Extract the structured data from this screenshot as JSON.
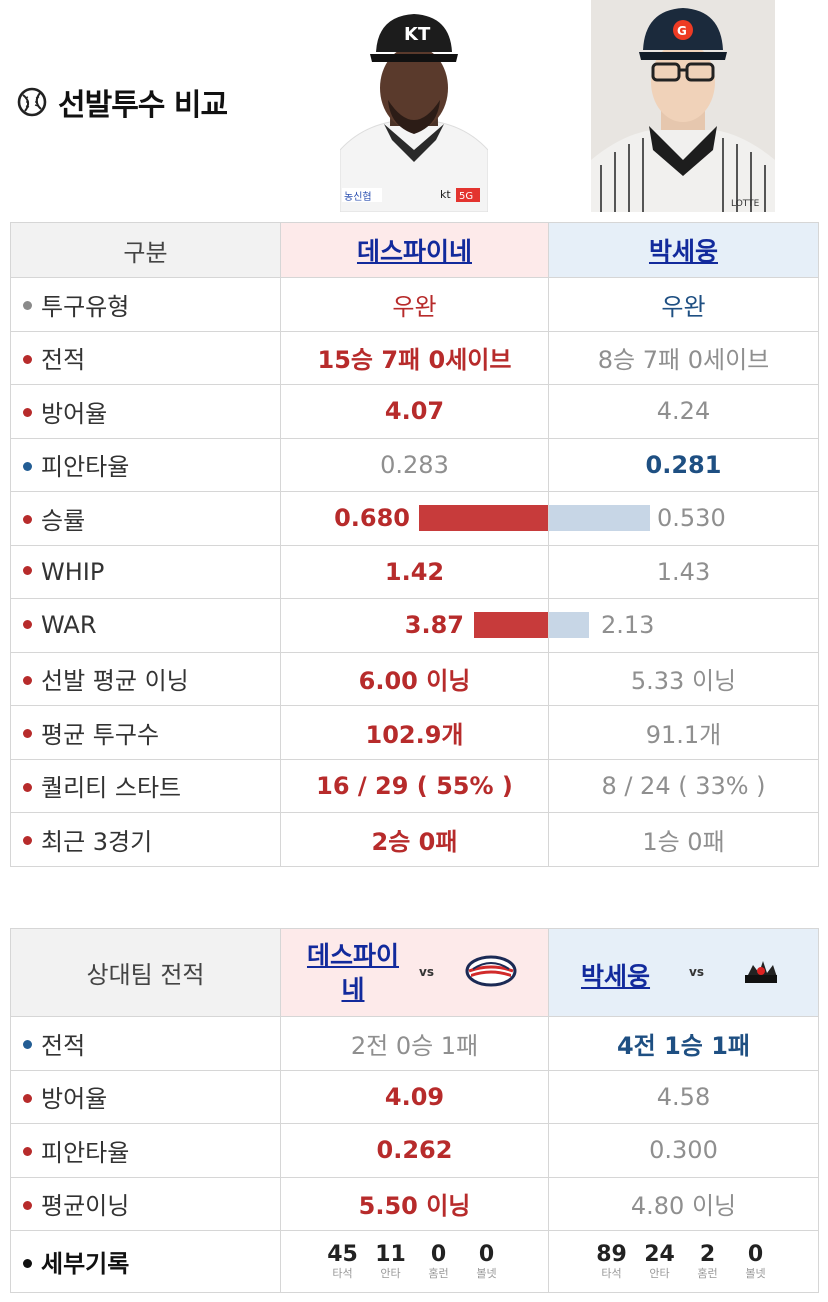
{
  "title": "선발투수 비교",
  "player1": {
    "name": "데스파이네"
  },
  "player2": {
    "name": "박세웅"
  },
  "table1": {
    "header": "구분",
    "rows": [
      {
        "label": "투구유형",
        "dot": "gray",
        "p1": "우완",
        "p2": "우완"
      },
      {
        "label": "전적",
        "dot": "red",
        "p1": "15승 7패 0세이브",
        "p2": "8승 7패 0세이브"
      },
      {
        "label": "방어율",
        "dot": "red",
        "p1": "4.07",
        "p2": "4.24"
      },
      {
        "label": "피안타율",
        "dot": "blue",
        "p1": "0.283",
        "p2": "0.281"
      },
      {
        "label": "승률",
        "dot": "red",
        "p1": "0.680",
        "p2": "0.530"
      },
      {
        "label": "WHIP",
        "dot": "red",
        "p1": "1.42",
        "p2": "1.43"
      },
      {
        "label": "WAR",
        "dot": "red",
        "p1": "3.87",
        "p2": "2.13"
      },
      {
        "label": "선발 평균 이닝",
        "dot": "red",
        "p1": "6.00 이닝",
        "p2": "5.33 이닝"
      },
      {
        "label": "평균 투구수",
        "dot": "red",
        "p1": "102.9개",
        "p2": "91.1개"
      },
      {
        "label": "퀄리티 스타트",
        "dot": "red",
        "p1": "16 / 29 ( 55% )",
        "p2": "8 / 24 ( 33% )"
      },
      {
        "label": "최근 3경기",
        "dot": "red",
        "p1": "2승 0패",
        "p2": "1승 0패"
      }
    ],
    "bars": {
      "win_rate": {
        "p1": 0.68,
        "p2": 0.53
      },
      "war": {
        "p1": 3.87,
        "p2": 2.13
      }
    }
  },
  "table2": {
    "header": "상대팀 전적",
    "p1_name_line1": "데스파이",
    "p1_name_line2": "네",
    "vs": "vs",
    "rows": [
      {
        "label": "전적",
        "dot": "blue",
        "p1": "2전 0승 1패",
        "p2": "4전 1승 1패"
      },
      {
        "label": "방어율",
        "dot": "red",
        "p1": "4.09",
        "p2": "4.58"
      },
      {
        "label": "피안타율",
        "dot": "red",
        "p1": "0.262",
        "p2": "0.300"
      },
      {
        "label": "평균이닝",
        "dot": "red",
        "p1": "5.50 이닝",
        "p2": "4.80 이닝"
      }
    ],
    "detail": {
      "label": "세부기록",
      "cats": [
        "타석",
        "안타",
        "홈런",
        "볼넷"
      ],
      "p1": [
        "45",
        "11",
        "0",
        "0"
      ],
      "p2": [
        "89",
        "24",
        "2",
        "0"
      ]
    }
  },
  "colors": {
    "red": "#b72b2b",
    "blue": "#1e4f82",
    "link": "#122a9c",
    "p1_bg": "#fdeaea",
    "p2_bg": "#e6eff8"
  }
}
